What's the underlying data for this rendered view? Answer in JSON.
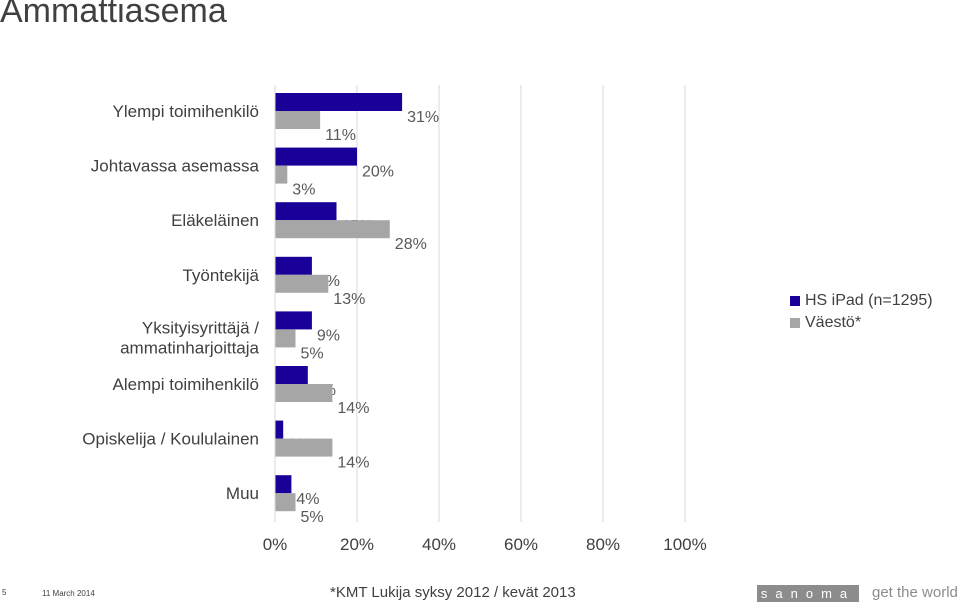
{
  "title": "Ammattiasema",
  "chart_data": {
    "type": "bar",
    "orientation": "horizontal",
    "categories": [
      "Ylempi toimihenkilö",
      "Johtavassa asemassa",
      "Eläkeläinen",
      "Työntekijä",
      "Yksityisyrittäjä / ammatinharjoittaja",
      "Alempi toimihenkilö",
      "Opiskelija / Koululainen",
      "Muu"
    ],
    "series": [
      {
        "name": "HS iPad (n=1295)",
        "color": "#1a0099",
        "values": [
          31,
          20,
          15,
          9,
          9,
          8,
          2,
          4
        ],
        "labels": [
          "31%",
          "20%",
          "15%",
          "9%",
          "9%",
          "8%",
          "2%",
          "4%"
        ]
      },
      {
        "name": "Väestö*",
        "color": "#a6a6a6",
        "values": [
          11,
          3,
          28,
          13,
          5,
          14,
          14,
          5
        ],
        "labels": [
          "11%",
          "3%",
          "28%",
          "13%",
          "5%",
          "14%",
          "14%",
          "5%"
        ]
      }
    ],
    "xlim": [
      0,
      100
    ],
    "xticks": [
      "0%",
      "20%",
      "40%",
      "60%",
      "80%",
      "100%"
    ],
    "grid": true,
    "legend_position": "right"
  },
  "footer": {
    "page": "5",
    "date": "11 March 2014",
    "source": "*KMT Lukija syksy 2012 / kevät 2013",
    "logo": "sanoma",
    "tagline": "get the world"
  }
}
